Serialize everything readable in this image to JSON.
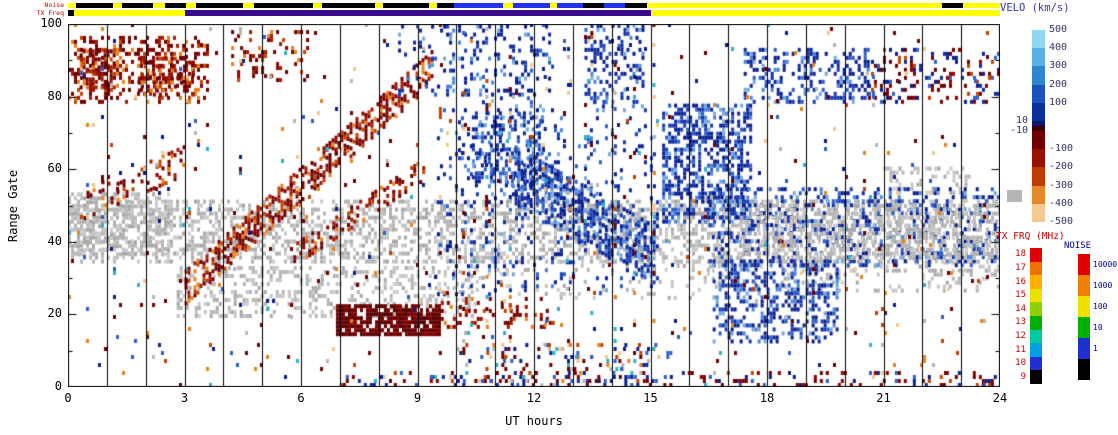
{
  "labels": {
    "noise_strip": "Noise",
    "txfreq_strip": "TX Freq",
    "ylabel": "Range Gate",
    "xlabel": "UT hours",
    "velo_title": "VELO (km/s)",
    "txfrq_title": "TX FRQ (MHz)",
    "noise_title": "NOISE"
  },
  "chart_data": {
    "type": "heatmap",
    "title": "",
    "xlabel": "UT hours",
    "ylabel": "Range Gate",
    "xlim": [
      0,
      24
    ],
    "ylim": [
      0,
      100
    ],
    "x_ticks": [
      0,
      3,
      6,
      9,
      12,
      15,
      18,
      21,
      24
    ],
    "y_ticks": [
      0,
      20,
      40,
      60,
      80,
      100
    ],
    "grid": "vertical black line every 1 hour",
    "colorbars": {
      "velocity": {
        "title": "VELO (km/s)",
        "colors": [
          "#90d8f0",
          "#58b0e4",
          "#2f84d0",
          "#1b52bc",
          "#0c2f9e",
          "#071a6e",
          "#400000",
          "#700000",
          "#981000",
          "#bf3c00",
          "#e4882a",
          "#f5c894"
        ],
        "right_labels": [
          "500",
          "400",
          "300",
          "200",
          "100",
          "-100",
          "-200",
          "-300",
          "-400",
          "-500"
        ],
        "left_labels": [
          "10",
          "-10"
        ],
        "ground_scatter_color": "#b6b6b6"
      },
      "txfreq": {
        "title": "TX FRQ (MHz)",
        "labels": [
          "18",
          "17",
          "16",
          "15",
          "14",
          "13",
          "12",
          "11",
          "10",
          "9"
        ],
        "colors": [
          "#e00000",
          "#f07000",
          "#ffb000",
          "#f0e000",
          "#90d000",
          "#00b000",
          "#00c8a0",
          "#00a0e0",
          "#2030d0",
          "#000000"
        ]
      },
      "noise": {
        "title": "NOISE",
        "labels": [
          "10000",
          "1000",
          "100",
          "10",
          "1",
          ""
        ],
        "colors": [
          "#e00000",
          "#f08000",
          "#f0e000",
          "#00b000",
          "#2030d0",
          "#000000"
        ]
      }
    },
    "strips": {
      "noise": {
        "label": "Noise",
        "base": "#ffff00",
        "segments": [
          {
            "from": 0.2,
            "to": 1.15,
            "color": "#000000"
          },
          {
            "from": 1.4,
            "to": 2.2,
            "color": "#000000"
          },
          {
            "from": 2.5,
            "to": 3.05,
            "color": "#000000"
          },
          {
            "from": 3.3,
            "to": 4.5,
            "color": "#000000"
          },
          {
            "from": 4.8,
            "to": 6.3,
            "color": "#000000"
          },
          {
            "from": 6.55,
            "to": 7.9,
            "color": "#000000"
          },
          {
            "from": 8.1,
            "to": 9.3,
            "color": "#000000"
          },
          {
            "from": 9.5,
            "to": 9.95,
            "color": "#000000"
          },
          {
            "from": 9.95,
            "to": 11.2,
            "color": "#2233ee"
          },
          {
            "from": 11.45,
            "to": 12.4,
            "color": "#2233ee"
          },
          {
            "from": 12.6,
            "to": 13.25,
            "color": "#2233ee"
          },
          {
            "from": 13.25,
            "to": 13.8,
            "color": "#000000"
          },
          {
            "from": 13.8,
            "to": 14.35,
            "color": "#2233ee"
          },
          {
            "from": 14.35,
            "to": 14.9,
            "color": "#000000"
          },
          {
            "from": 22.5,
            "to": 23.05,
            "color": "#000000"
          }
        ]
      },
      "txfreq": {
        "label": "TX Freq",
        "base": "#ffff00",
        "segments": [
          {
            "from": 0.0,
            "to": 0.15,
            "color": "#000000"
          },
          {
            "from": 3.0,
            "to": 15.0,
            "color": "#3a0a8c"
          }
        ]
      }
    },
    "palettes": {
      "gs": [
        "#b6b6b6",
        "#c4c4c4",
        "#aaaaaa",
        "#cccccc"
      ],
      "neg": [
        "#6e0000",
        "#8c0000",
        "#a51a00",
        "#c44400",
        "#e8821e"
      ],
      "negdark": [
        "#5c0000",
        "#700000",
        "#840000"
      ],
      "pos": [
        "#0a1f8f",
        "#122c9e",
        "#1b3db8",
        "#2f5fc8",
        "#4f86d8",
        "#76aade"
      ],
      "negpos": [
        "#6e0000",
        "#0a1f8f",
        "#8c0000",
        "#122c9e",
        "#c44400",
        "#2f5fc8"
      ],
      "mix": [
        "#6e0000",
        "#0a1f8f",
        "#e8821e",
        "#2f5fc8",
        "#b6b6b6",
        "#30b0c8",
        "#c44400",
        "#f2c890"
      ]
    },
    "features": [
      {
        "type": "band",
        "x": [
          0,
          24
        ],
        "y": [
          34,
          51
        ],
        "density": 0.42,
        "palette": "gs"
      },
      {
        "type": "band",
        "x": [
          0,
          2.6
        ],
        "y": [
          36,
          53
        ],
        "density": 0.5,
        "palette": "gs"
      },
      {
        "type": "band",
        "x": [
          2.8,
          10.5
        ],
        "y": [
          19,
          33
        ],
        "density": 0.3,
        "palette": "gs"
      },
      {
        "type": "band",
        "x": [
          10.5,
          16.5
        ],
        "y": [
          24,
          34
        ],
        "density": 0.12,
        "palette": "gs"
      },
      {
        "type": "band",
        "x": [
          16.5,
          24
        ],
        "y": [
          26,
          36
        ],
        "density": 0.2,
        "palette": "gs"
      },
      {
        "type": "band",
        "x": [
          21,
          23.2
        ],
        "y": [
          53,
          60
        ],
        "density": 0.25,
        "palette": "gs"
      },
      {
        "type": "band",
        "x": [
          0,
          3.6
        ],
        "y": [
          78,
          96
        ],
        "density": 0.35,
        "palette": "neg"
      },
      {
        "type": "band",
        "x": [
          0.3,
          1.2
        ],
        "y": [
          82,
          92
        ],
        "density": 0.5,
        "palette": "neg"
      },
      {
        "type": "band",
        "x": [
          1.8,
          3.2
        ],
        "y": [
          80,
          90
        ],
        "density": 0.45,
        "palette": "neg"
      },
      {
        "type": "diag",
        "x": [
          0.4,
          3.0
        ],
        "yc": [
          50,
          62
        ],
        "hw": 4,
        "density": 0.22,
        "palette": "neg"
      },
      {
        "type": "diag",
        "x": [
          3.0,
          9.4
        ],
        "yc": [
          27,
          88
        ],
        "hw": 4.5,
        "density": 0.5,
        "palette": "neg"
      },
      {
        "type": "diag",
        "x": [
          5.8,
          9.2
        ],
        "yc": [
          36,
          60
        ],
        "hw": 3,
        "density": 0.3,
        "palette": "neg"
      },
      {
        "type": "band",
        "x": [
          4.2,
          6.2
        ],
        "y": [
          84,
          98
        ],
        "density": 0.2,
        "palette": "neg"
      },
      {
        "type": "band",
        "x": [
          6.9,
          9.6
        ],
        "y": [
          14,
          22
        ],
        "density": 0.8,
        "palette": "negdark"
      },
      {
        "type": "band",
        "x": [
          9.6,
          12.5
        ],
        "y": [
          16,
          24
        ],
        "density": 0.22,
        "palette": "neg"
      },
      {
        "type": "band",
        "x": [
          8.5,
          12.5
        ],
        "y": [
          80,
          100
        ],
        "density": 0.18,
        "palette": "pos"
      },
      {
        "type": "band",
        "x": [
          9.5,
          15.2
        ],
        "y": [
          25,
          80
        ],
        "density": 0.1,
        "palette": "pos"
      },
      {
        "type": "band",
        "x": [
          10.4,
          12.2
        ],
        "y": [
          55,
          75
        ],
        "density": 0.35,
        "palette": "pos"
      },
      {
        "type": "diag",
        "x": [
          11.5,
          15.1
        ],
        "yc": [
          58,
          36
        ],
        "hw": 8,
        "density": 0.5,
        "palette": "pos"
      },
      {
        "type": "band",
        "x": [
          13.3,
          14.8
        ],
        "y": [
          78,
          100
        ],
        "density": 0.3,
        "palette": "pos"
      },
      {
        "type": "band",
        "x": [
          15.3,
          17.6
        ],
        "y": [
          45,
          78
        ],
        "density": 0.5,
        "palette": "pos"
      },
      {
        "type": "band",
        "x": [
          16.6,
          19.8
        ],
        "y": [
          12,
          35
        ],
        "density": 0.4,
        "palette": "pos"
      },
      {
        "type": "band",
        "x": [
          16.5,
          24
        ],
        "y": [
          33,
          55
        ],
        "density": 0.25,
        "palette": "pos"
      },
      {
        "type": "band",
        "x": [
          17.2,
          24
        ],
        "y": [
          35,
          50
        ],
        "density": 0.3,
        "palette": "gs"
      },
      {
        "type": "band",
        "x": [
          17.4,
          20.6
        ],
        "y": [
          78,
          93
        ],
        "density": 0.3,
        "palette": "pos"
      },
      {
        "type": "band",
        "x": [
          20.6,
          24
        ],
        "y": [
          78,
          93
        ],
        "density": 0.22,
        "palette": "negpos"
      },
      {
        "type": "band",
        "x": [
          7,
          24
        ],
        "y": [
          0,
          4
        ],
        "density": 0.18,
        "palette": "negpos"
      },
      {
        "type": "band",
        "x": [
          10,
          15.5
        ],
        "y": [
          0,
          12
        ],
        "density": 0.15,
        "palette": "mix"
      },
      {
        "type": "vlines",
        "xs": [
          9.55,
          10.15,
          10.75,
          11.35,
          12.25,
          12.85,
          13.45,
          14.05,
          14.55,
          15.05
        ],
        "y": [
          0,
          100
        ],
        "density": 0.12,
        "palette": "mix"
      },
      {
        "type": "band",
        "x": [
          0,
          24
        ],
        "y": [
          0,
          100
        ],
        "density": 0.02,
        "palette": "mix"
      }
    ]
  }
}
